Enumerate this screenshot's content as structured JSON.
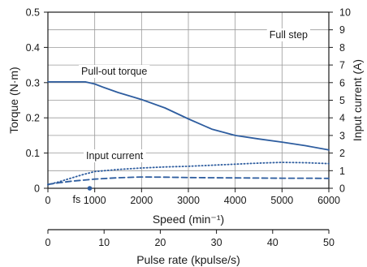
{
  "chart_data": {
    "type": "line",
    "x_label": "Speed (min⁻¹)",
    "x_range": [
      0,
      6000
    ],
    "x_ticks": [
      "0",
      "1000",
      "2000",
      "3000",
      "4000",
      "5000",
      "6000"
    ],
    "x_tick_values": [
      0,
      1000,
      2000,
      3000,
      4000,
      5000,
      6000
    ],
    "y_label_left": "Torque (N·m)",
    "y_range_left": [
      0,
      0.5
    ],
    "y_ticks_left": [
      "0",
      "0.1",
      "0.2",
      "0.3",
      "0.4",
      "0.5"
    ],
    "y_tick_values_left": [
      0,
      0.1,
      0.2,
      0.3,
      0.4,
      0.5
    ],
    "y_label_right": "Input current (A)",
    "y_range_right": [
      0,
      10
    ],
    "y_ticks_right": [
      "0",
      "1",
      "2",
      "3",
      "4",
      "5",
      "6",
      "7",
      "8",
      "9",
      "10"
    ],
    "y_tick_values_right": [
      0,
      1,
      2,
      3,
      4,
      5,
      6,
      7,
      8,
      9,
      10
    ],
    "x2_label": "Pulse rate (kpulse/s)",
    "x2_range": [
      0,
      50
    ],
    "x2_ticks": [
      "0",
      "10",
      "20",
      "30",
      "40",
      "50"
    ],
    "x2_tick_values": [
      0,
      10,
      20,
      30,
      40,
      50
    ],
    "grid": true,
    "annotations": {
      "full_step": "Full step",
      "pullout": "Pull-out torque",
      "input_current": "Input current",
      "fs": "fs"
    },
    "fs_speed": 650,
    "series": [
      {
        "name": "Pull-out torque",
        "axis": "left",
        "style": "solid",
        "x": [
          0,
          200,
          500,
          800,
          1000,
          1200,
          1500,
          2000,
          2500,
          3000,
          3500,
          4000,
          4500,
          5000,
          5500,
          6000
        ],
        "y": [
          0.302,
          0.302,
          0.302,
          0.302,
          0.296,
          0.286,
          0.272,
          0.252,
          0.228,
          0.197,
          0.168,
          0.15,
          0.14,
          0.131,
          0.121,
          0.109
        ]
      },
      {
        "name": "Input current (dotted)",
        "axis": "right",
        "style": "dotted",
        "x": [
          0,
          250,
          500,
          750,
          1000,
          1500,
          2000,
          2500,
          3000,
          3500,
          4000,
          4500,
          5000,
          5500,
          6000
        ],
        "y": [
          0.2,
          0.38,
          0.58,
          0.78,
          0.95,
          1.07,
          1.15,
          1.21,
          1.25,
          1.31,
          1.37,
          1.43,
          1.47,
          1.45,
          1.4
        ]
      },
      {
        "name": "Input current (dashed)",
        "axis": "right",
        "style": "dashed",
        "x": [
          0,
          250,
          500,
          750,
          1000,
          1500,
          2000,
          2500,
          3000,
          3500,
          4000,
          4500,
          5000,
          5500,
          6000
        ],
        "y": [
          0.22,
          0.32,
          0.4,
          0.46,
          0.52,
          0.6,
          0.64,
          0.63,
          0.61,
          0.6,
          0.59,
          0.58,
          0.57,
          0.57,
          0.56
        ]
      }
    ],
    "colors": {
      "line": "#2e5d9f",
      "grid": "#9a9a9a",
      "axis": "#1a1a1a"
    }
  }
}
